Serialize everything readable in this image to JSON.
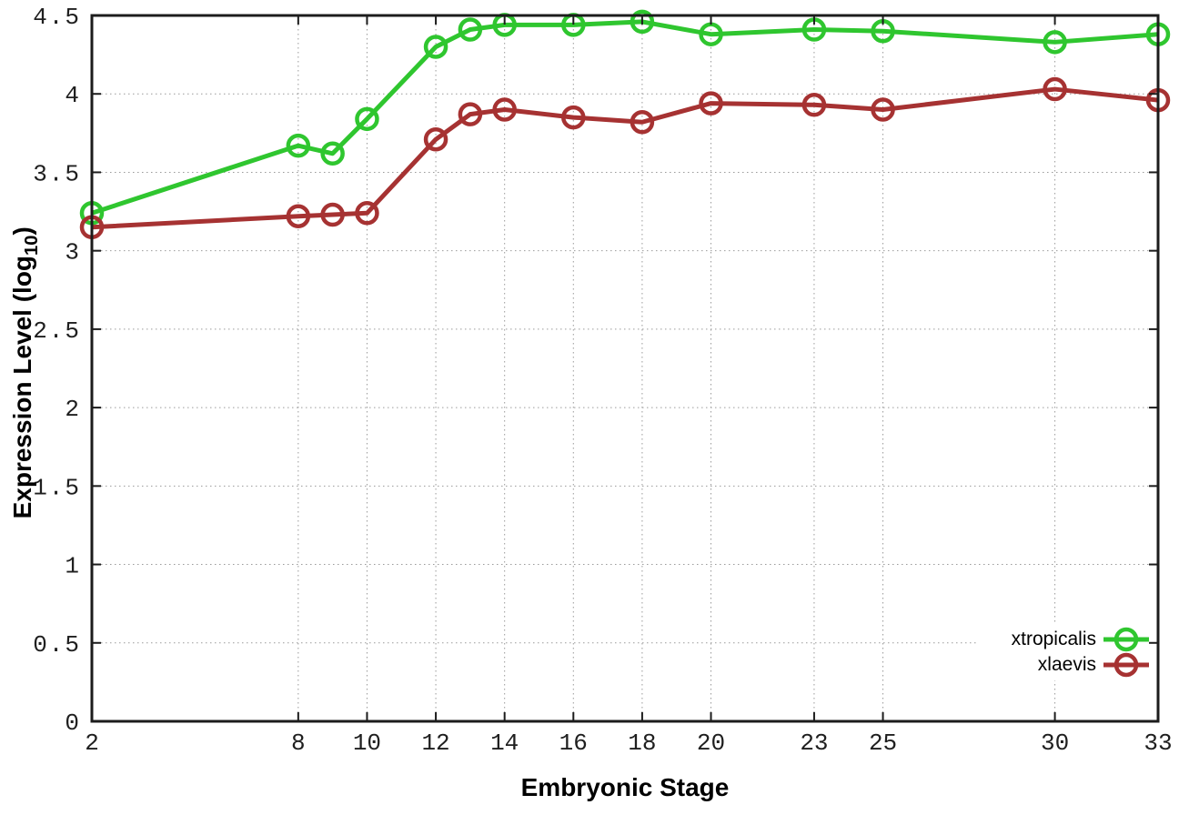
{
  "chart_data": {
    "type": "line",
    "title": "",
    "xlabel": "Embryonic Stage",
    "ylabel_parts": {
      "prefix": "Expression Level (log",
      "subscript": "10",
      "suffix": ")"
    },
    "xlim": [
      2,
      33
    ],
    "ylim": [
      0,
      4.5
    ],
    "grid": true,
    "legend_position": "bottom-right-inside",
    "x_ticks": [
      2,
      8,
      10,
      12,
      14,
      16,
      18,
      20,
      23,
      25,
      30,
      33
    ],
    "y_ticks": [
      0,
      0.5,
      1,
      1.5,
      2,
      2.5,
      3,
      3.5,
      4,
      4.5
    ],
    "x": [
      2,
      8,
      9,
      10,
      12,
      13,
      14,
      16,
      18,
      20,
      23,
      25,
      30,
      33
    ],
    "series": [
      {
        "name": "xtropicalis",
        "color": "#2fc62f",
        "values": [
          3.24,
          3.67,
          3.62,
          3.84,
          4.3,
          4.41,
          4.44,
          4.44,
          4.46,
          4.38,
          4.41,
          4.4,
          4.33,
          4.38
        ]
      },
      {
        "name": "xlaevis",
        "color": "#a63232",
        "values": [
          3.15,
          3.22,
          3.23,
          3.24,
          3.71,
          3.87,
          3.9,
          3.85,
          3.82,
          3.94,
          3.93,
          3.9,
          4.03,
          3.96
        ]
      }
    ],
    "style": {
      "border_color": "#1c1c1c",
      "grid_color": "#9a9a9a",
      "background": "#ffffff"
    }
  }
}
